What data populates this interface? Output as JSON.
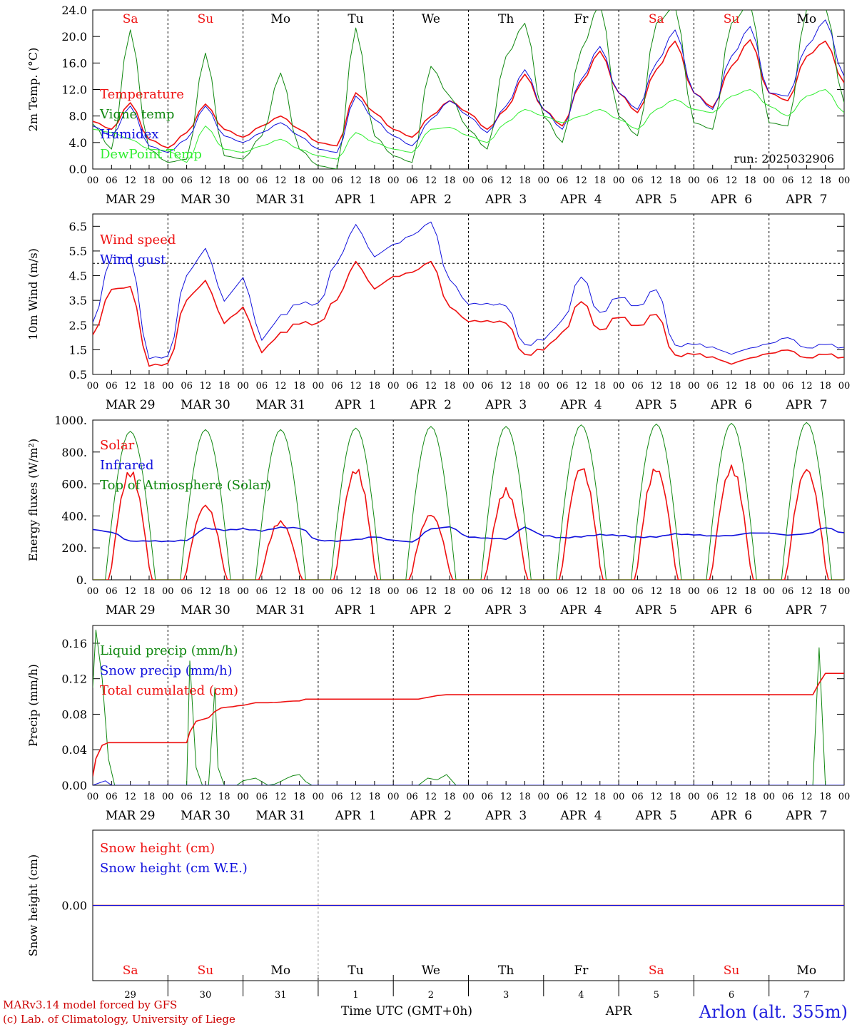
{
  "days": [
    {
      "abbr": "Sa",
      "weekend": true,
      "date": "MAR 29",
      "daynum": "29"
    },
    {
      "abbr": "Su",
      "weekend": true,
      "date": "MAR 30",
      "daynum": "30"
    },
    {
      "abbr": "Mo",
      "weekend": false,
      "date": "MAR 31",
      "daynum": "31"
    },
    {
      "abbr": "Tu",
      "weekend": false,
      "date": "APR  1",
      "daynum": "1"
    },
    {
      "abbr": "We",
      "weekend": false,
      "date": "APR  2",
      "daynum": "2"
    },
    {
      "abbr": "Th",
      "weekend": false,
      "date": "APR  3",
      "daynum": "3"
    },
    {
      "abbr": "Fr",
      "weekend": false,
      "date": "APR  4",
      "daynum": "4"
    },
    {
      "abbr": "Sa",
      "weekend": true,
      "date": "APR  5",
      "daynum": "5"
    },
    {
      "abbr": "Su",
      "weekend": true,
      "date": "APR  6",
      "daynum": "6"
    },
    {
      "abbr": "Mo",
      "weekend": false,
      "date": "APR  7",
      "daynum": "7"
    }
  ],
  "hour_ticks": [
    "00",
    "06",
    "12",
    "18"
  ],
  "final_tick": "00",
  "colors": {
    "red": "#ee1111",
    "blue": "#1111dd",
    "darkgreen": "#118811",
    "lightgreen": "#33ee33",
    "weekend": "#ee1111"
  },
  "run_label": "run: 2025032906",
  "credits": [
    "MARv3.14 model forced by GFS",
    "(c) Lab. of Climatology, University of Liege"
  ],
  "bottom_axis": {
    "title": "Time UTC (GMT+0h)",
    "month": "APR"
  },
  "station": "Arlon (alt. 355m)",
  "chart_data": [
    {
      "type": "line",
      "ylabel": "2m Temp. (°C)",
      "ylim": [
        0,
        24
      ],
      "yticks": [
        "0.0",
        "4.0",
        "8.0",
        "12.0",
        "16.0",
        "20.0",
        "24.0"
      ],
      "grid": "dotted day separators",
      "x_units": "hours since MAR 29 00 UTC",
      "series": [
        {
          "name": "Temperature",
          "color": "#ee1111",
          "x": [
            0,
            6,
            12,
            18,
            24,
            30,
            36,
            42,
            48,
            54,
            60,
            66,
            72,
            78,
            84,
            90,
            96,
            102,
            108,
            114,
            120,
            126,
            132,
            138,
            144,
            150,
            156,
            162,
            168,
            174,
            180,
            186,
            192,
            198,
            204,
            210,
            216,
            222,
            228,
            234,
            240
          ],
          "y": [
            7.2,
            6.0,
            10.0,
            4.5,
            3.2,
            5.5,
            9.8,
            6.0,
            4.8,
            6.5,
            8.0,
            6.0,
            4.0,
            3.5,
            11.5,
            8.5,
            6.0,
            4.8,
            8.0,
            10.3,
            8.5,
            6.0,
            9.0,
            14.3,
            9.0,
            6.5,
            13.0,
            17.8,
            11.5,
            8.5,
            15.0,
            19.3,
            11.5,
            9.3,
            15.5,
            19.5,
            11.5,
            10.3,
            17.0,
            19.3,
            13.0
          ]
        },
        {
          "name": "Vigne temp",
          "color": "#118811",
          "x": [
            0,
            6,
            12,
            18,
            24,
            30,
            36,
            42,
            48,
            54,
            60,
            66,
            72,
            78,
            84,
            90,
            96,
            102,
            108,
            114,
            120,
            126,
            132,
            138,
            144,
            150,
            156,
            162,
            168,
            174,
            180,
            186,
            192,
            198,
            204,
            210,
            216,
            222,
            228,
            234,
            240
          ],
          "y": [
            6.8,
            3.0,
            21.0,
            3.0,
            1.0,
            1.5,
            17.5,
            2.0,
            1.5,
            5.0,
            14.5,
            3.0,
            0.5,
            0.0,
            21.3,
            5.0,
            2.0,
            1.0,
            15.5,
            11.0,
            6.0,
            3.0,
            17.0,
            22.0,
            8.0,
            4.0,
            18.0,
            25.0,
            8.0,
            5.0,
            22.0,
            24.5,
            7.0,
            6.0,
            22.0,
            25.0,
            7.0,
            6.5,
            24.0,
            24.5,
            10.0
          ]
        },
        {
          "name": "Humidex",
          "color": "#1111dd",
          "x": [
            0,
            6,
            12,
            18,
            24,
            30,
            36,
            42,
            48,
            54,
            60,
            66,
            72,
            78,
            84,
            90,
            96,
            102,
            108,
            114,
            120,
            126,
            132,
            138,
            144,
            150,
            156,
            162,
            168,
            174,
            180,
            186,
            192,
            198,
            204,
            210,
            216,
            222,
            228,
            234,
            240
          ],
          "y": [
            6.5,
            5.0,
            9.5,
            3.5,
            2.5,
            4.5,
            9.5,
            5.0,
            4.0,
            5.5,
            7.0,
            5.0,
            3.0,
            2.5,
            11.0,
            7.5,
            5.0,
            3.5,
            7.5,
            10.3,
            8.0,
            5.5,
            9.5,
            15.0,
            9.0,
            6.0,
            13.5,
            18.5,
            11.5,
            9.0,
            16.0,
            21.0,
            11.5,
            9.0,
            17.0,
            21.5,
            11.5,
            11.0,
            18.5,
            22.5,
            14.0
          ]
        },
        {
          "name": "DewPoint Temp",
          "color": "#33ee33",
          "x": [
            0,
            6,
            12,
            18,
            24,
            30,
            36,
            42,
            48,
            54,
            60,
            66,
            72,
            78,
            84,
            90,
            96,
            102,
            108,
            114,
            120,
            126,
            132,
            138,
            144,
            150,
            156,
            162,
            168,
            174,
            180,
            186,
            192,
            198,
            204,
            210,
            216,
            222,
            228,
            234,
            240
          ],
          "y": [
            6.0,
            5.5,
            4.5,
            3.0,
            2.8,
            1.0,
            6.5,
            3.0,
            2.5,
            3.5,
            4.5,
            3.0,
            2.0,
            1.5,
            5.5,
            4.0,
            3.0,
            2.5,
            6.0,
            6.3,
            5.0,
            4.0,
            7.0,
            9.0,
            8.0,
            7.0,
            8.0,
            9.0,
            7.5,
            6.0,
            9.0,
            10.5,
            9.0,
            8.5,
            11.0,
            12.0,
            9.5,
            8.0,
            11.0,
            12.0,
            8.5
          ]
        }
      ]
    },
    {
      "type": "line",
      "ylabel": "10m Wind (m/s)",
      "ylim": [
        0.5,
        7.0
      ],
      "yticks": [
        "0.5",
        "1.5",
        "2.5",
        "3.5",
        "4.5",
        "5.5",
        "6.5"
      ],
      "reference_line": 5.0,
      "grid": "dotted day separators",
      "series": [
        {
          "name": "Wind speed",
          "color": "#ee1111",
          "x": [
            0,
            6,
            12,
            18,
            24,
            30,
            36,
            42,
            48,
            54,
            60,
            66,
            72,
            78,
            84,
            90,
            96,
            102,
            108,
            114,
            120,
            126,
            132,
            138,
            144,
            150,
            156,
            162,
            168,
            174,
            180,
            186,
            192,
            198,
            204,
            210,
            216,
            222,
            228,
            234,
            240
          ],
          "y": [
            2.1,
            4.0,
            4.1,
            0.9,
            0.9,
            3.5,
            4.2,
            2.6,
            3.2,
            1.5,
            2.2,
            2.6,
            2.5,
            3.5,
            5.0,
            4.0,
            4.5,
            4.7,
            5.1,
            3.2,
            2.6,
            2.6,
            2.6,
            1.3,
            1.6,
            2.2,
            3.5,
            2.2,
            2.8,
            2.4,
            3.0,
            1.3,
            1.4,
            1.2,
            0.9,
            1.1,
            1.3,
            1.5,
            1.2,
            1.4,
            1.2
          ]
        },
        {
          "name": "Wind gust",
          "color": "#1111dd",
          "x": [
            0,
            6,
            12,
            18,
            24,
            30,
            36,
            42,
            48,
            54,
            60,
            66,
            72,
            78,
            84,
            90,
            96,
            102,
            108,
            114,
            120,
            126,
            132,
            138,
            144,
            150,
            156,
            162,
            168,
            174,
            180,
            186,
            192,
            198,
            204,
            210,
            216,
            222,
            228,
            234,
            240
          ],
          "y": [
            2.6,
            5.3,
            5.3,
            1.2,
            1.2,
            4.5,
            5.5,
            3.5,
            4.4,
            2.0,
            2.9,
            3.4,
            3.3,
            5.0,
            6.5,
            5.3,
            5.8,
            6.2,
            6.7,
            4.3,
            3.3,
            3.3,
            3.3,
            1.7,
            2.0,
            2.7,
            4.5,
            2.9,
            3.6,
            3.2,
            4.0,
            1.7,
            1.8,
            1.6,
            1.3,
            1.5,
            1.7,
            2.0,
            1.6,
            1.8,
            1.6
          ]
        }
      ]
    },
    {
      "type": "line",
      "ylabel": "Energy fluxes (W/m²)",
      "ylim": [
        0,
        1000
      ],
      "yticks": [
        "0.",
        "200.",
        "400.",
        "600.",
        "800.",
        "1000."
      ],
      "grid": "dotted day separators",
      "series": [
        {
          "name": "Solar",
          "color": "#ee1111",
          "daily_peak": [
            700,
            490,
            380,
            720,
            430,
            580,
            740,
            730,
            730,
            730
          ]
        },
        {
          "name": "Infrared",
          "color": "#1111dd",
          "x": [
            0,
            6,
            12,
            18,
            24,
            30,
            36,
            42,
            48,
            54,
            60,
            66,
            72,
            78,
            84,
            90,
            96,
            102,
            108,
            114,
            120,
            126,
            132,
            138,
            144,
            150,
            156,
            162,
            168,
            174,
            180,
            186,
            192,
            198,
            204,
            210,
            216,
            222,
            228,
            234,
            240
          ],
          "y": [
            315,
            300,
            245,
            245,
            240,
            245,
            320,
            310,
            320,
            310,
            330,
            325,
            245,
            240,
            250,
            270,
            250,
            240,
            320,
            330,
            265,
            258,
            255,
            330,
            280,
            265,
            270,
            280,
            275,
            265,
            270,
            290,
            285,
            275,
            275,
            290,
            290,
            280,
            290,
            330,
            295
          ]
        },
        {
          "name": "Top of Atmosphere (Solar)",
          "color": "#118811",
          "daily_peak": [
            930,
            940,
            940,
            950,
            960,
            960,
            970,
            975,
            980,
            985
          ]
        }
      ]
    },
    {
      "type": "line",
      "ylabel": "Precip (mm/h)",
      "ylim": [
        0,
        0.18
      ],
      "yticks": [
        "0.00",
        "0.04",
        "0.08",
        "0.12",
        "0.16"
      ],
      "grid": "dotted day separators",
      "series": [
        {
          "name": "Liquid precip (mm/h)",
          "color": "#118811",
          "x": [
            0,
            1,
            3,
            5,
            7,
            24,
            30,
            31,
            33,
            35,
            37,
            39,
            40,
            42,
            44,
            46,
            48,
            52,
            56,
            66,
            68,
            70,
            72,
            104,
            107,
            110,
            113,
            116,
            230,
            232,
            234,
            236,
            240
          ],
          "y": [
            0.11,
            0.175,
            0.12,
            0.03,
            0.0,
            0.0,
            0.0,
            0.14,
            0.02,
            0.0,
            0.0,
            0.11,
            0.02,
            0.0,
            0.0,
            0.0,
            0.005,
            0.008,
            0.0,
            0.012,
            0.004,
            0.0,
            0.0,
            0.0,
            0.008,
            0.006,
            0.012,
            0.0,
            0.0,
            0.155,
            0.0,
            0.0,
            0.0
          ]
        },
        {
          "name": "Snow precip (mm/h)",
          "color": "#1111dd",
          "x": [
            0,
            4,
            6,
            8,
            240
          ],
          "y": [
            0.0,
            0.005,
            0.0,
            0.0,
            0.0
          ]
        },
        {
          "name": "Total cumulated (cm)",
          "color": "#ee1111",
          "x": [
            0,
            1,
            3,
            5,
            7,
            30,
            31,
            33,
            35,
            37,
            39,
            41,
            43,
            48,
            52,
            56,
            66,
            68,
            70,
            72,
            104,
            107,
            110,
            113,
            116,
            230,
            232,
            234,
            236,
            240
          ],
          "y": [
            0.01,
            0.03,
            0.045,
            0.048,
            0.048,
            0.048,
            0.06,
            0.072,
            0.074,
            0.076,
            0.083,
            0.087,
            0.088,
            0.09,
            0.093,
            0.093,
            0.095,
            0.097,
            0.097,
            0.097,
            0.097,
            0.099,
            0.101,
            0.102,
            0.102,
            0.102,
            0.115,
            0.126,
            0.126,
            0.126
          ]
        }
      ]
    },
    {
      "type": "line",
      "ylabel": "Snow height (cm)",
      "yticks": [
        "0.00"
      ],
      "series": [
        {
          "name": "Snow height (cm)",
          "color": "#ee1111",
          "x": [
            0,
            240
          ],
          "y": [
            0,
            0
          ]
        },
        {
          "name": "Snow height (cm W.E.)",
          "color": "#1111dd",
          "x": [
            0,
            240
          ],
          "y": [
            0,
            0
          ]
        }
      ]
    }
  ]
}
